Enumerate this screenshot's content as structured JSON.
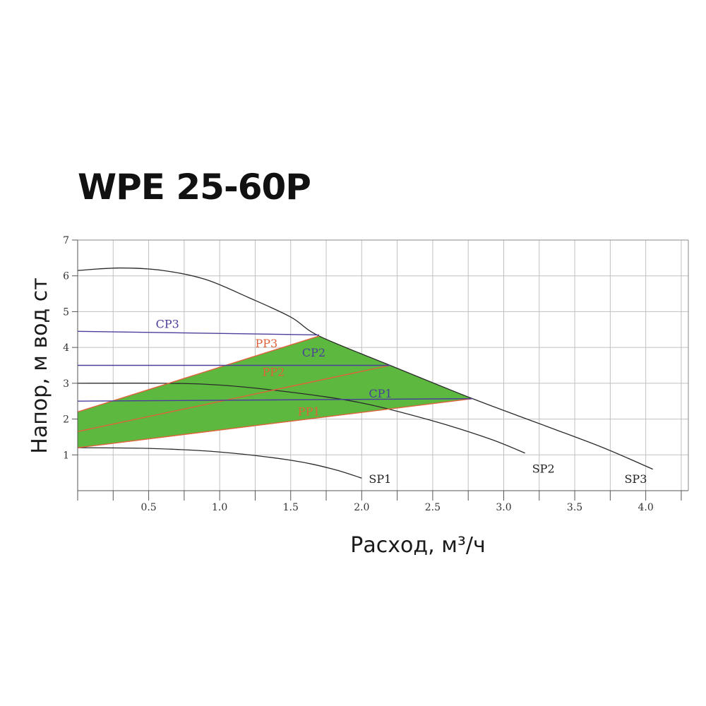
{
  "chart_data": {
    "type": "line",
    "title": "WPE 25-60P",
    "xlabel": "Расход, м³/ч",
    "ylabel": "Напор, м вод ст",
    "xlim": [
      0,
      4.3
    ],
    "ylim": [
      0,
      7
    ],
    "x_ticks": [
      "0.5",
      "1.0",
      "1.5",
      "2.0",
      "2.5",
      "3.0",
      "3.5",
      "4.0"
    ],
    "x_tick_values": [
      0.5,
      1.0,
      1.5,
      2.0,
      2.5,
      3.0,
      3.5,
      4.0
    ],
    "y_ticks": [
      "1",
      "2",
      "3",
      "4",
      "5",
      "6",
      "7"
    ],
    "y_tick_values": [
      1,
      2,
      3,
      4,
      5,
      6,
      7
    ],
    "grid": true,
    "colors": {
      "region_fill": "#5cb83f",
      "sp": "#2b2b2b",
      "pp": "#e0623a",
      "cp": "#4a3f9a",
      "grid": "#c0c0c0"
    },
    "region": {
      "name": "",
      "points": [
        [
          0,
          2.2
        ],
        [
          1.7,
          4.32
        ],
        [
          2.2,
          3.5
        ],
        [
          2.78,
          2.57
        ],
        [
          0,
          1.2
        ]
      ]
    },
    "series": [
      {
        "name": "SP3",
        "group": "sp",
        "points": [
          [
            0,
            6.15
          ],
          [
            0.3,
            6.22
          ],
          [
            0.6,
            6.15
          ],
          [
            0.9,
            5.9
          ],
          [
            1.2,
            5.4
          ],
          [
            1.5,
            4.85
          ],
          [
            1.7,
            4.32
          ],
          [
            2.2,
            3.5
          ],
          [
            2.78,
            2.57
          ],
          [
            3.3,
            1.8
          ],
          [
            3.7,
            1.2
          ],
          [
            4.05,
            0.6
          ]
        ]
      },
      {
        "name": "SP2",
        "group": "sp",
        "points": [
          [
            0,
            3.0
          ],
          [
            0.6,
            3.0
          ],
          [
            1.0,
            2.95
          ],
          [
            1.5,
            2.75
          ],
          [
            2.0,
            2.45
          ],
          [
            2.5,
            1.95
          ],
          [
            2.9,
            1.45
          ],
          [
            3.15,
            1.05
          ]
        ]
      },
      {
        "name": "SP1",
        "group": "sp",
        "points": [
          [
            0,
            1.2
          ],
          [
            0.5,
            1.18
          ],
          [
            1.0,
            1.08
          ],
          [
            1.5,
            0.85
          ],
          [
            1.8,
            0.6
          ],
          [
            2.0,
            0.35
          ]
        ]
      },
      {
        "name": "PP3",
        "group": "pp",
        "points": [
          [
            0,
            2.2
          ],
          [
            1.7,
            4.32
          ]
        ]
      },
      {
        "name": "PP2",
        "group": "pp",
        "points": [
          [
            0,
            1.65
          ],
          [
            2.2,
            3.5
          ]
        ]
      },
      {
        "name": "PP1",
        "group": "pp",
        "points": [
          [
            0,
            1.2
          ],
          [
            2.78,
            2.57
          ]
        ]
      },
      {
        "name": "CP3",
        "group": "cp",
        "points": [
          [
            0,
            4.45
          ],
          [
            1.7,
            4.35
          ]
        ]
      },
      {
        "name": "CP2",
        "group": "cp",
        "points": [
          [
            0,
            3.5
          ],
          [
            2.2,
            3.5
          ]
        ]
      },
      {
        "name": "CP1",
        "group": "cp",
        "points": [
          [
            0,
            2.5
          ],
          [
            2.78,
            2.57
          ]
        ]
      }
    ],
    "annotations": [
      {
        "text": "SP1",
        "x": 2.05,
        "y": 0.22,
        "group": "sp"
      },
      {
        "text": "SP2",
        "x": 3.2,
        "y": 0.5,
        "group": "sp"
      },
      {
        "text": "SP3",
        "x": 3.85,
        "y": 0.22,
        "group": "sp"
      },
      {
        "text": "PP3",
        "x": 1.25,
        "y": 4.0,
        "group": "pp"
      },
      {
        "text": "PP2",
        "x": 1.3,
        "y": 3.2,
        "group": "pp"
      },
      {
        "text": "PP1",
        "x": 1.55,
        "y": 2.1,
        "group": "pp"
      },
      {
        "text": "CP3",
        "x": 0.55,
        "y": 4.55,
        "group": "cp"
      },
      {
        "text": "CP2",
        "x": 1.58,
        "y": 3.75,
        "group": "cp"
      },
      {
        "text": "CP1",
        "x": 2.05,
        "y": 2.6,
        "group": "cp"
      }
    ]
  }
}
